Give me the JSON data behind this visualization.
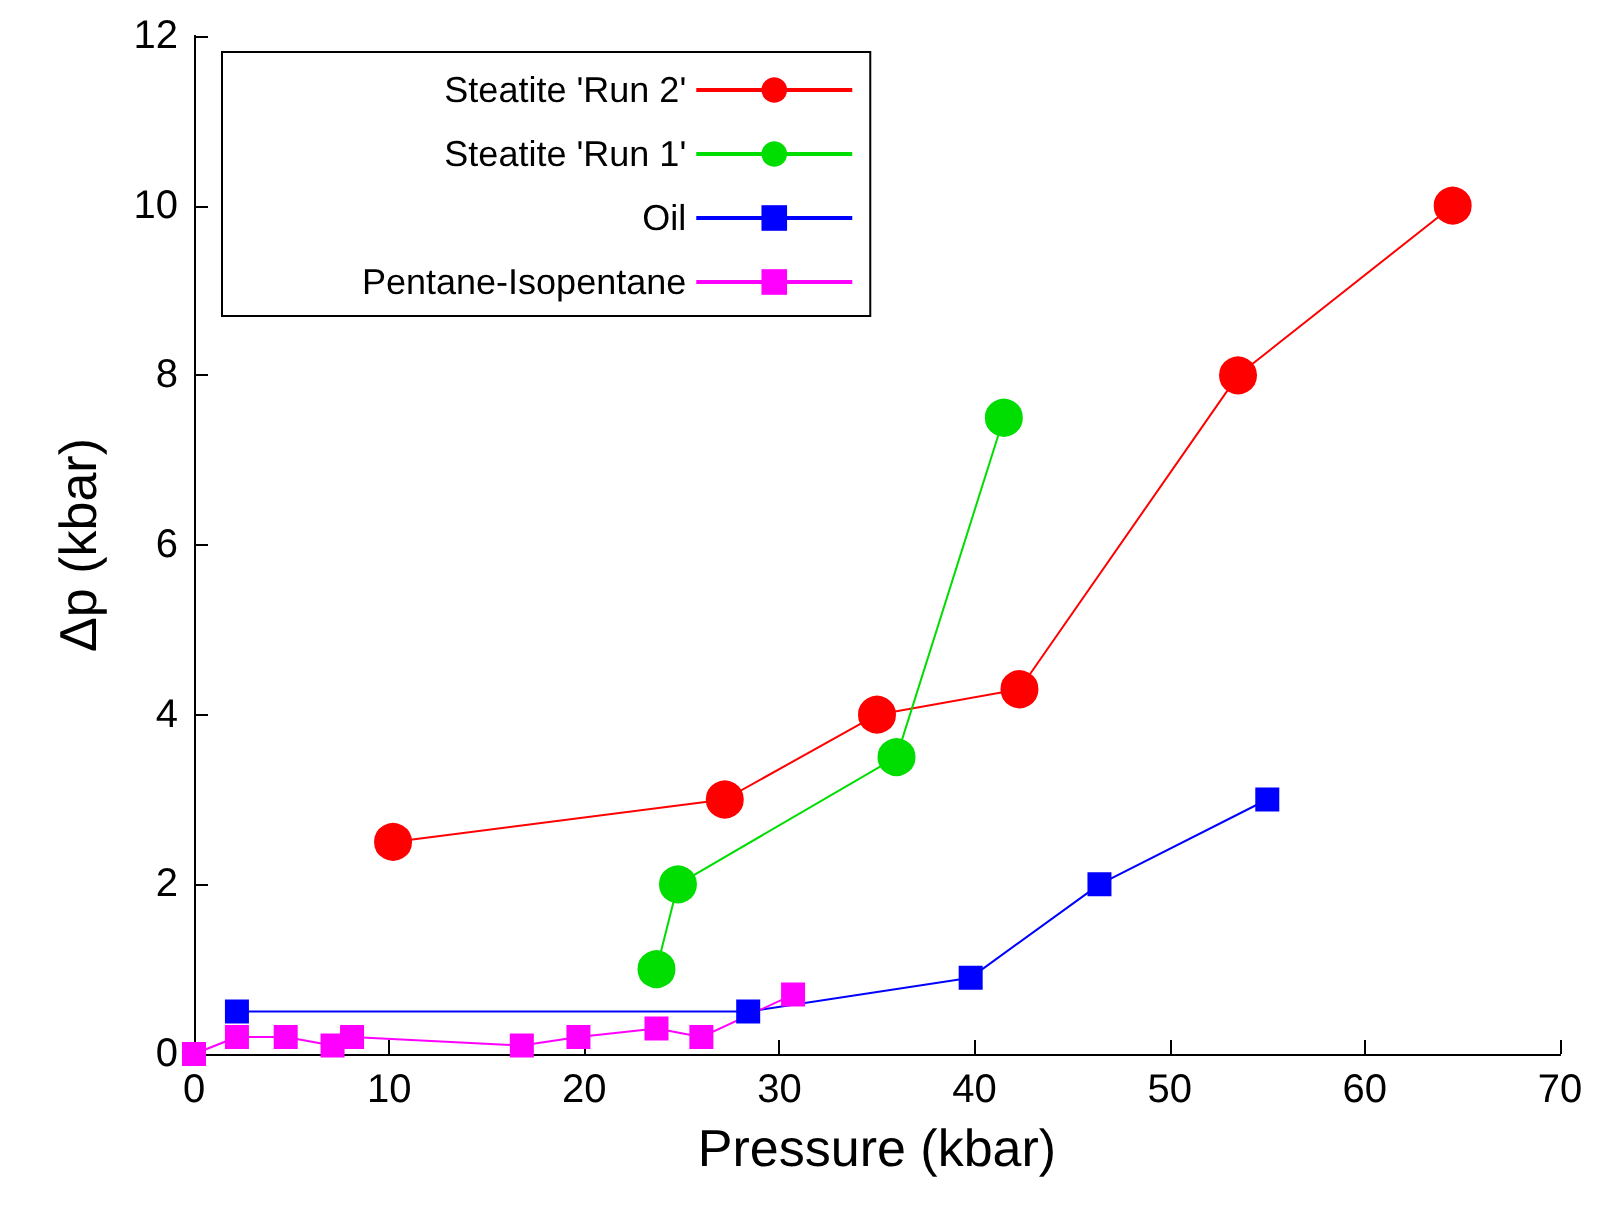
{
  "chart_data": {
    "type": "line",
    "xlabel": "Pressure (kbar)",
    "ylabel": "Δp (kbar)",
    "xlim": [
      0,
      70
    ],
    "xticks": [
      0,
      10,
      20,
      30,
      40,
      50,
      60,
      70
    ],
    "ylim": [
      0,
      12
    ],
    "yticks": [
      0,
      2,
      4,
      6,
      8,
      10,
      12
    ],
    "grid": false,
    "legend": "top left",
    "series": [
      {
        "name": "Steatite 'Run 2'",
        "color": "#ff0000",
        "marker": "circle",
        "x": [
          10.2,
          27.2,
          35,
          42.3,
          53.5,
          64.5
        ],
        "values": [
          2.5,
          3.0,
          4.0,
          4.3,
          8.0,
          10.0
        ]
      },
      {
        "name": "Steatite 'Run 1'",
        "color": "#00dd00",
        "marker": "circle",
        "x": [
          23.7,
          24.8,
          36,
          41.5
        ],
        "values": [
          1.0,
          2.0,
          3.5,
          7.5
        ]
      },
      {
        "name": "Oil",
        "color": "#0000ff",
        "marker": "square",
        "x": [
          2.2,
          28.4,
          39.8,
          46.4,
          55
        ],
        "values": [
          0.5,
          0.5,
          0.9,
          2.0,
          3.0
        ]
      },
      {
        "name": "Pentane-Isopentane",
        "color": "#ff00ff",
        "marker": "square",
        "x": [
          0,
          2.2,
          4.7,
          7.1,
          8.1,
          16.8,
          19.7,
          23.7,
          26.0,
          30.7
        ],
        "values": [
          0,
          0.2,
          0.2,
          0.1,
          0.2,
          0.1,
          0.2,
          0.3,
          0.2,
          0.7
        ]
      }
    ]
  }
}
